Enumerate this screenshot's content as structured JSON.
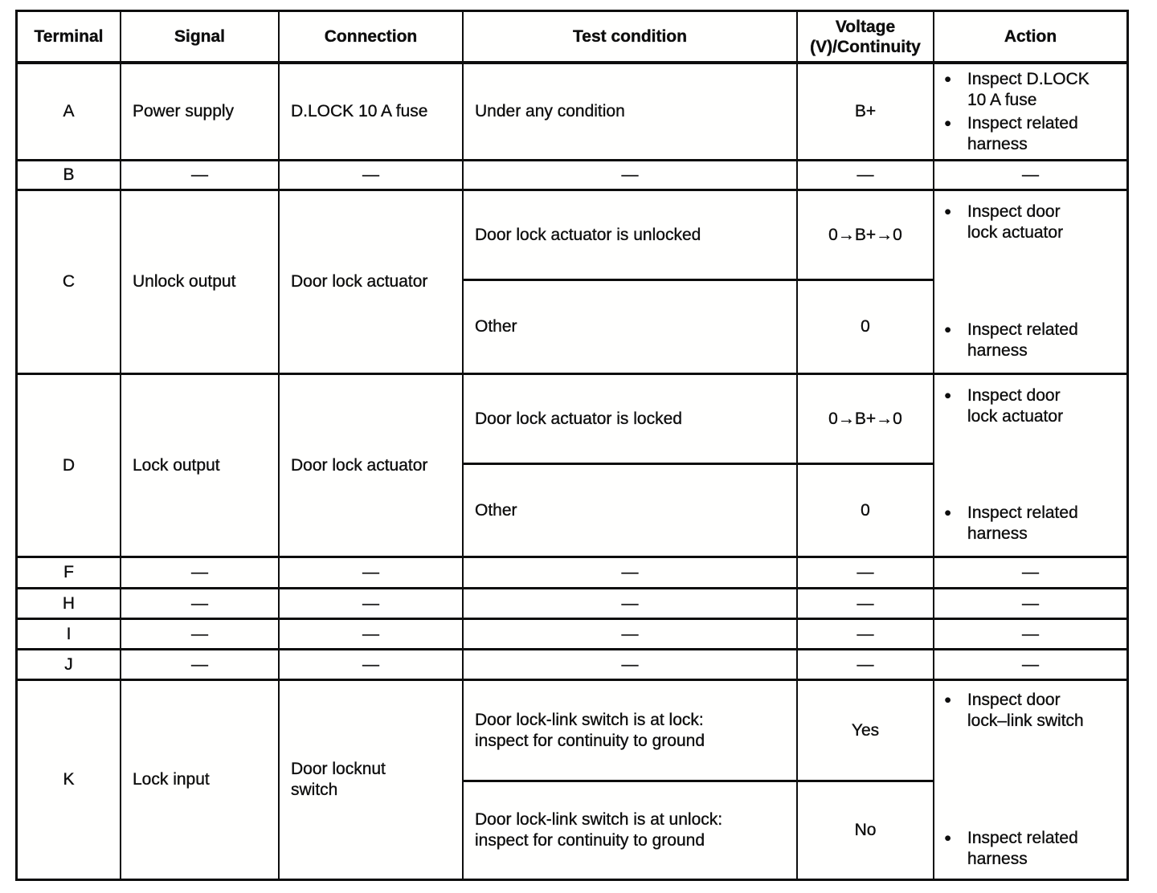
{
  "icons": {
    "bullet": "●"
  },
  "table": {
    "header": {
      "terminal": "Terminal",
      "signal": "Signal",
      "connection": "Connection",
      "test_condition": "Test condition",
      "voltage_line1": "Voltage",
      "voltage_line2": "(V)/Continuity",
      "action": "Action"
    },
    "rows": {
      "a": {
        "terminal": "A",
        "signal": "Power supply",
        "connection": "D.LOCK 10 A fuse",
        "test_condition": "Under any condition",
        "voltage": "B+",
        "actions": [
          "Inspect D.LOCK\n10 A fuse",
          "Inspect related\nharness"
        ]
      },
      "b": {
        "terminal": "B",
        "signal": "—",
        "connection": "—",
        "test_condition": "—",
        "voltage": "—",
        "action": "—"
      },
      "c": {
        "terminal": "C",
        "signal": "Unlock output",
        "connection": "Door lock actuator",
        "sub": [
          {
            "test_condition": "Door lock actuator is unlocked",
            "voltage": "0→B+→0"
          },
          {
            "test_condition": "Other",
            "voltage": "0"
          }
        ],
        "actions": [
          "Inspect door\nlock actuator",
          "Inspect related\nharness"
        ]
      },
      "d": {
        "terminal": "D",
        "signal": "Lock output",
        "connection": "Door lock actuator",
        "sub": [
          {
            "test_condition": "Door lock actuator is locked",
            "voltage": "0→B+→0"
          },
          {
            "test_condition": "Other",
            "voltage": "0"
          }
        ],
        "actions": [
          "Inspect door\nlock actuator",
          "Inspect related\nharness"
        ]
      },
      "f": {
        "terminal": "F",
        "signal": "—",
        "connection": "—",
        "test_condition": "—",
        "voltage": "—",
        "action": "—"
      },
      "h": {
        "terminal": "H",
        "signal": "—",
        "connection": "—",
        "test_condition": "—",
        "voltage": "—",
        "action": "—"
      },
      "i": {
        "terminal": "I",
        "signal": "—",
        "connection": "—",
        "test_condition": "—",
        "voltage": "—",
        "action": "—"
      },
      "j": {
        "terminal": "J",
        "signal": "—",
        "connection": "—",
        "test_condition": "—",
        "voltage": "—",
        "action": "—"
      },
      "k": {
        "terminal": "K",
        "signal": "Lock input",
        "connection": "Door locknut\nswitch",
        "sub": [
          {
            "test_condition": "Door lock-link switch is at lock:\ninspect for continuity to ground",
            "voltage": "Yes"
          },
          {
            "test_condition": "Door lock-link switch is at unlock:\ninspect for continuity to ground",
            "voltage": "No"
          }
        ],
        "actions": [
          "Inspect door\nlock–link switch",
          "Inspect related\nharness"
        ]
      }
    }
  }
}
